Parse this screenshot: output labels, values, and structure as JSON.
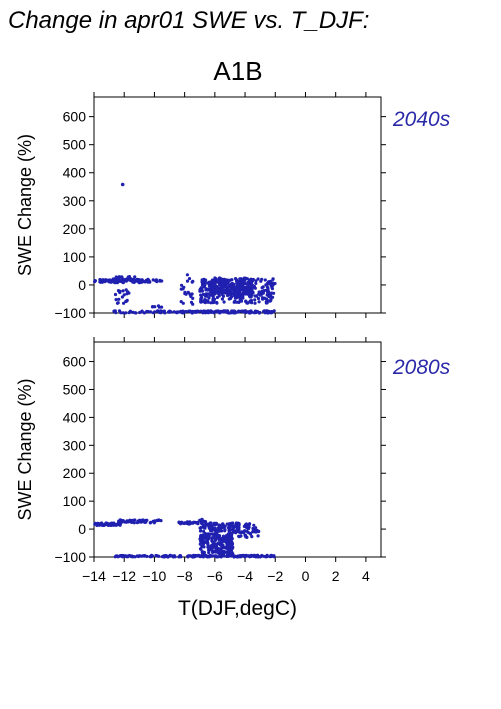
{
  "page_title": "Change in apr01 SWE vs. T_DJF:",
  "scenario_label": "A1B",
  "colors": {
    "points": "#2020b0",
    "period_label": "#2a2aa8",
    "axis": "#000000"
  },
  "chart_data": [
    {
      "type": "scatter",
      "title": "2040s",
      "xlabel": "",
      "ylabel": "SWE Change (%)",
      "xlim": [
        -14,
        5
      ],
      "ylim": [
        -100,
        670
      ],
      "yticks": [
        -100,
        0,
        100,
        200,
        300,
        400,
        500,
        600
      ],
      "xticks": [
        -14,
        -12,
        -10,
        -8,
        -6,
        -4,
        -2,
        0,
        2,
        4
      ],
      "x_tick_labels_shown": false,
      "clusters": [
        {
          "x_range": [
            -14,
            -9.5
          ],
          "y_range": [
            8,
            20
          ],
          "n": 90
        },
        {
          "x_range": [
            -12.8,
            -11.2
          ],
          "y_range": [
            15,
            30
          ],
          "n": 25
        },
        {
          "x_range": [
            -12.6,
            -11.6
          ],
          "y_range": [
            -70,
            -15
          ],
          "n": 20
        },
        {
          "x_range": [
            -12.8,
            -8
          ],
          "y_range": [
            -100,
            -92
          ],
          "n": 45
        },
        {
          "x_range": [
            -10.2,
            -9.4
          ],
          "y_range": [
            -80,
            -70
          ],
          "n": 6
        },
        {
          "x_range": [
            -8.6,
            -2
          ],
          "y_range": [
            -100,
            -92
          ],
          "n": 130
        },
        {
          "x_range": [
            -8.3,
            -7.4
          ],
          "y_range": [
            -75,
            40
          ],
          "n": 22
        },
        {
          "x_range": [
            -7,
            -2
          ],
          "y_range": [
            -65,
            25
          ],
          "n": 300
        },
        {
          "x_range": [
            -6.5,
            -3.5
          ],
          "y_range": [
            -35,
            25
          ],
          "n": 180
        }
      ],
      "points": [
        {
          "x": -12.1,
          "y": 358
        }
      ]
    },
    {
      "type": "scatter",
      "title": "2080s",
      "xlabel": "T(DJF,degC)",
      "ylabel": "SWE Change (%)",
      "xlim": [
        -14,
        5
      ],
      "ylim": [
        -100,
        670
      ],
      "yticks": [
        -100,
        0,
        100,
        200,
        300,
        400,
        500,
        600
      ],
      "xticks": [
        -14,
        -12,
        -10,
        -8,
        -6,
        -4,
        -2,
        0,
        2,
        4
      ],
      "x_tick_labels": [
        "−14",
        "−12",
        "−10",
        "−8",
        "−6",
        "−4",
        "−2",
        "0",
        "2",
        "4"
      ],
      "x_tick_labels_shown": true,
      "clusters": [
        {
          "x_range": [
            -14,
            -12.2
          ],
          "y_range": [
            13,
            22
          ],
          "n": 55
        },
        {
          "x_range": [
            -12.4,
            -9.5
          ],
          "y_range": [
            22,
            33
          ],
          "n": 60
        },
        {
          "x_range": [
            -8.4,
            -7.1
          ],
          "y_range": [
            18,
            26
          ],
          "n": 30
        },
        {
          "x_range": [
            -12.6,
            -8.2
          ],
          "y_range": [
            -100,
            -94
          ],
          "n": 70
        },
        {
          "x_range": [
            -7.8,
            -2
          ],
          "y_range": [
            -100,
            -94
          ],
          "n": 110
        },
        {
          "x_range": [
            -7,
            -4.8
          ],
          "y_range": [
            -92,
            -15
          ],
          "n": 220
        },
        {
          "x_range": [
            -7,
            -3.2
          ],
          "y_range": [
            -10,
            22
          ],
          "n": 120
        },
        {
          "x_range": [
            -7.2,
            -6.6
          ],
          "y_range": [
            20,
            35
          ],
          "n": 12
        },
        {
          "x_range": [
            -4.8,
            -3
          ],
          "y_range": [
            -30,
            -5
          ],
          "n": 25
        }
      ],
      "points": []
    }
  ]
}
